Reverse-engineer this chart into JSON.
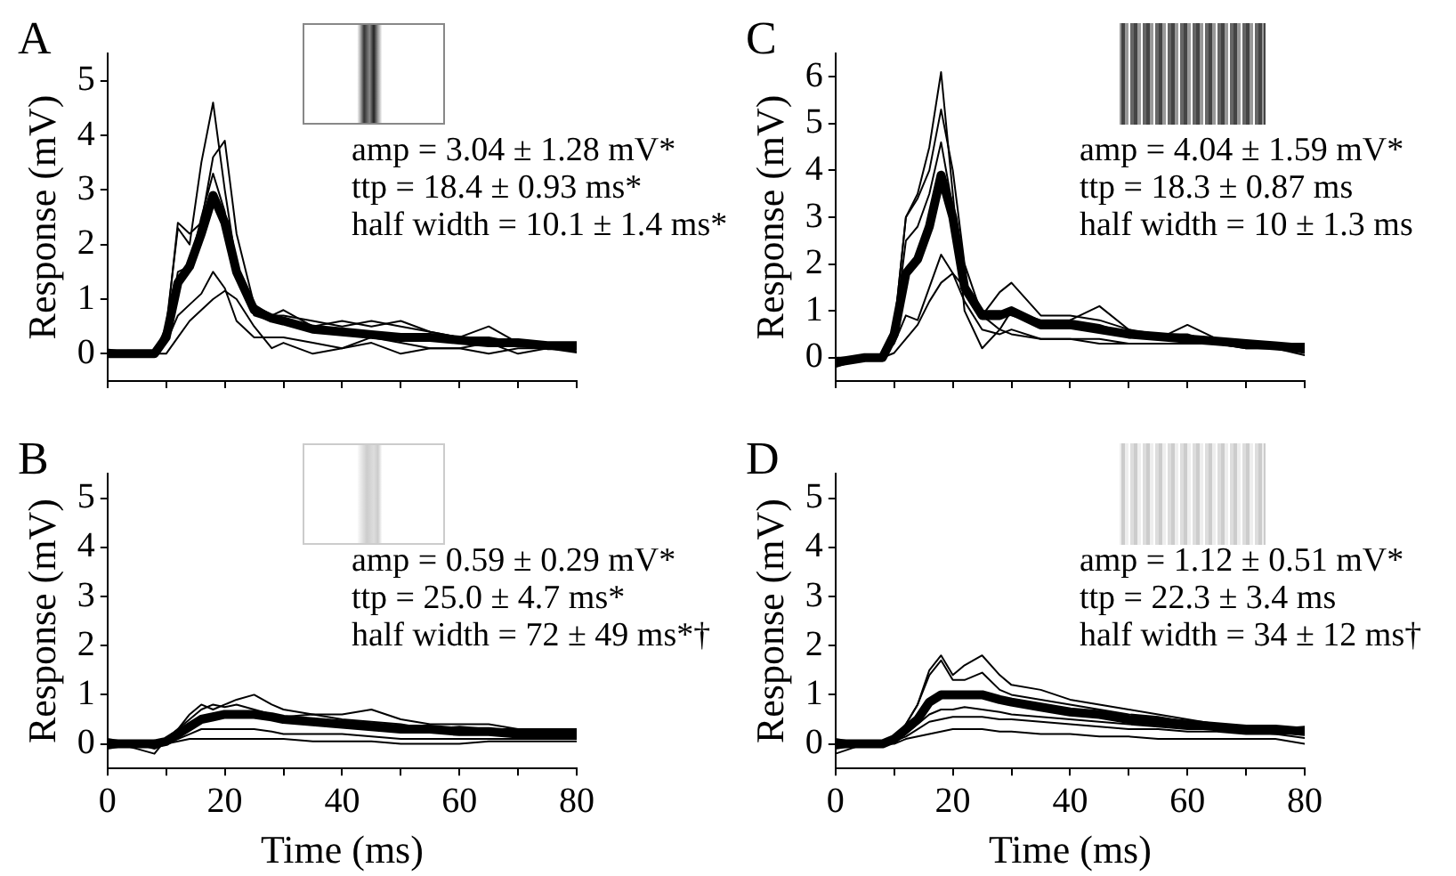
{
  "chart_data": [
    {
      "type": "line",
      "title": "A",
      "ylabel": "Response (mV)",
      "tick_labels": "y",
      "xlim": [
        0,
        80
      ],
      "xticks": [
        0,
        {
          "value": 10,
          "label": null
        },
        20,
        {
          "value": 30,
          "label": null
        },
        40,
        {
          "value": 50,
          "label": null
        },
        60,
        {
          "value": 70,
          "label": null
        },
        80
      ],
      "ylim": [
        -0.5,
        5.5
      ],
      "yticks": [
        0,
        1,
        2,
        3,
        4,
        5
      ],
      "annotations": [
        "amp = 3.04 ± 1.28 mV*",
        "ttp = 18.4 ± 0.93 ms*",
        "half width = 10.1 ± 1.4 ms*"
      ],
      "x": [
        0,
        5,
        8,
        10,
        12,
        14,
        16,
        18,
        20,
        22,
        25,
        28,
        30,
        35,
        40,
        45,
        50,
        55,
        60,
        65,
        70,
        75,
        80
      ],
      "series": [
        {
          "color": "#000000",
          "values": [
            0.05,
            0,
            0,
            0.5,
            2.3,
            2.0,
            3.5,
            4.6,
            3.0,
            1.6,
            0.8,
            0.7,
            0.7,
            0.6,
            0.5,
            0.6,
            0.5,
            0.4,
            0.3,
            0.3,
            0.2,
            0.2,
            0.2
          ]
        },
        {
          "color": "#000000",
          "values": [
            -0.05,
            0,
            0,
            0.4,
            2.4,
            2.2,
            2.4,
            3.6,
            3.9,
            2.2,
            0.9,
            0.7,
            0.8,
            0.5,
            0.6,
            0.5,
            0.6,
            0.4,
            0.3,
            0.5,
            0.2,
            0.2,
            0.1
          ]
        },
        {
          "color": "#000000",
          "values": [
            0.02,
            0,
            0,
            0.3,
            1.5,
            1.6,
            2.5,
            3.3,
            2.6,
            1.4,
            0.7,
            0.6,
            0.55,
            0.5,
            0.4,
            0.3,
            0.3,
            0.3,
            0.2,
            0.2,
            0.2,
            0.1,
            0.12
          ]
        },
        {
          "color": "#000000",
          "values": [
            -0.02,
            0,
            0,
            0.2,
            0.7,
            0.9,
            1.1,
            1.5,
            1.2,
            0.6,
            0.3,
            0.3,
            0.3,
            0.2,
            0.1,
            0.3,
            0.2,
            0.1,
            0.1,
            0,
            0.1,
            0.1,
            0.05
          ]
        },
        {
          "color": "#000000",
          "values": [
            0.08,
            0,
            0,
            0,
            0.3,
            0.6,
            0.8,
            1.0,
            1.15,
            1.0,
            0.5,
            0.1,
            0.2,
            0,
            0.1,
            0.2,
            0,
            0.1,
            0.1,
            0.2,
            0,
            0.1,
            0.02
          ]
        },
        {
          "color": "#000000",
          "values": [
            0,
            0,
            0,
            0.3,
            1.3,
            1.6,
            2.2,
            2.9,
            2.4,
            1.5,
            0.8,
            0.65,
            0.6,
            0.45,
            0.4,
            0.35,
            0.3,
            0.3,
            0.25,
            0.2,
            0.2,
            0.15,
            0.15
          ]
        }
      ]
    },
    {
      "type": "line",
      "title": "C",
      "ylabel": "Response (mV)",
      "tick_labels": "y",
      "xlim": [
        0,
        80
      ],
      "xticks": [
        0,
        {
          "value": 10,
          "label": null
        },
        20,
        {
          "value": 30,
          "label": null
        },
        40,
        {
          "value": 50,
          "label": null
        },
        60,
        {
          "value": 70,
          "label": null
        },
        80
      ],
      "ylim": [
        -0.5,
        6.5
      ],
      "yticks": [
        0,
        1,
        2,
        3,
        4,
        5,
        6
      ],
      "annotations": [
        "amp = 4.04 ± 1.59 mV*",
        "ttp = 18.3 ± 0.87 ms",
        "half width = 10 ± 1.3 ms"
      ],
      "x": [
        0,
        5,
        8,
        10,
        12,
        14,
        16,
        18,
        20,
        22,
        25,
        28,
        30,
        35,
        40,
        45,
        50,
        55,
        60,
        65,
        70,
        75,
        80
      ],
      "series": [
        {
          "color": "#000000",
          "values": [
            -0.15,
            0,
            0,
            0.6,
            3.0,
            3.5,
            4.5,
            6.1,
            3.5,
            1.0,
            0.2,
            0.6,
            1.0,
            0.8,
            0.8,
            0.7,
            0.5,
            0.5,
            0.4,
            0.4,
            0.3,
            0.3,
            0.25
          ]
        },
        {
          "color": "#000000",
          "values": [
            -0.05,
            0,
            0,
            0.6,
            3.0,
            3.4,
            4.0,
            5.3,
            4.0,
            2.0,
            0.9,
            1.4,
            1.6,
            0.9,
            0.9,
            0.8,
            0.6,
            0.5,
            0.5,
            0.3,
            0.3,
            0.3,
            0.3
          ]
        },
        {
          "color": "#000000",
          "values": [
            -0.2,
            0,
            0,
            0.5,
            2.5,
            2.8,
            3.5,
            4.6,
            3.2,
            1.6,
            1.0,
            1.0,
            0.9,
            0.7,
            0.8,
            1.1,
            0.6,
            0.4,
            0.7,
            0.4,
            0.3,
            0.2,
            0.15
          ]
        },
        {
          "color": "#000000",
          "values": [
            0,
            0,
            0,
            0.3,
            0.9,
            0.8,
            1.5,
            2.2,
            1.8,
            1.2,
            0.6,
            0.5,
            0.6,
            0.4,
            0.4,
            0.4,
            0.3,
            0.3,
            0.3,
            0.3,
            0.2,
            0.2,
            0.1
          ]
        },
        {
          "color": "#000000",
          "values": [
            -0.08,
            0,
            0,
            0.1,
            0.4,
            0.7,
            1.2,
            1.6,
            1.8,
            1.5,
            0.9,
            0.6,
            0.5,
            0.4,
            0.4,
            0.3,
            0.3,
            0.3,
            0.3,
            0.3,
            0.2,
            0.2,
            0.05
          ]
        },
        {
          "color": "#000000",
          "values": [
            -0.1,
            0,
            0,
            0.5,
            1.8,
            2.1,
            2.8,
            3.9,
            3.0,
            1.5,
            0.9,
            0.9,
            1.0,
            0.7,
            0.7,
            0.6,
            0.5,
            0.45,
            0.4,
            0.35,
            0.3,
            0.25,
            0.2
          ]
        }
      ]
    },
    {
      "type": "line",
      "title": "B",
      "ylabel": "Response (mV)",
      "xlabel": "Time (ms)",
      "xlim": [
        0,
        80
      ],
      "xticks": [
        0,
        {
          "value": 10,
          "label": null
        },
        20,
        {
          "value": 30,
          "label": null
        },
        40,
        {
          "value": 50,
          "label": null
        },
        60,
        {
          "value": 70,
          "label": null
        },
        80
      ],
      "ylim": [
        -0.5,
        5.5
      ],
      "yticks": [
        0,
        1,
        2,
        3,
        4,
        5
      ],
      "annotations": [
        "amp = 0.59 ± 0.29 mV*",
        "ttp = 25.0 ± 4.7 ms*",
        "half width = 72 ± 49 ms*†"
      ],
      "x": [
        0,
        5,
        8,
        10,
        12,
        14,
        16,
        18,
        20,
        22,
        25,
        28,
        30,
        35,
        40,
        45,
        50,
        55,
        60,
        65,
        70,
        75,
        80
      ],
      "series": [
        {
          "color": "#000000",
          "values": [
            0.05,
            -0.1,
            -0.2,
            0.1,
            0.3,
            0.6,
            0.8,
            0.7,
            0.8,
            0.9,
            1.0,
            0.8,
            0.7,
            0.6,
            0.6,
            0.7,
            0.5,
            0.4,
            0.4,
            0.4,
            0.3,
            0.3,
            0.3
          ]
        },
        {
          "color": "#000000",
          "values": [
            -0.05,
            0,
            0,
            0.1,
            0.3,
            0.5,
            0.7,
            0.8,
            0.75,
            0.8,
            0.7,
            0.6,
            0.55,
            0.6,
            0.5,
            0.45,
            0.4,
            0.3,
            0.35,
            0.3,
            0.3,
            0.2,
            0.25
          ]
        },
        {
          "color": "#000000",
          "values": [
            0.1,
            0,
            -0.1,
            0,
            0.1,
            0.2,
            0.3,
            0.3,
            0.3,
            0.3,
            0.3,
            0.25,
            0.2,
            0.2,
            0.2,
            0.15,
            0.1,
            0.1,
            0.1,
            0.1,
            0.1,
            0.1,
            0.1
          ]
        },
        {
          "color": "#000000",
          "values": [
            -0.1,
            0,
            0,
            0,
            0.05,
            0.1,
            0.1,
            0.1,
            0.1,
            0.1,
            0.1,
            0.1,
            0.1,
            0.05,
            0.05,
            0.05,
            0,
            0,
            0,
            0.05,
            0.05,
            0.05,
            0.05
          ]
        },
        {
          "color": "#000000",
          "values": [
            0,
            0,
            0,
            0.05,
            0.2,
            0.35,
            0.5,
            0.55,
            0.6,
            0.6,
            0.6,
            0.55,
            0.5,
            0.45,
            0.4,
            0.35,
            0.3,
            0.3,
            0.25,
            0.25,
            0.2,
            0.2,
            0.2
          ]
        }
      ]
    },
    {
      "type": "line",
      "title": "D",
      "ylabel": "Response (mV)",
      "xlabel": "Time (ms)",
      "xlim": [
        0,
        80
      ],
      "xticks": [
        0,
        {
          "value": 10,
          "label": null
        },
        20,
        {
          "value": 30,
          "label": null
        },
        40,
        {
          "value": 50,
          "label": null
        },
        60,
        {
          "value": 70,
          "label": null
        },
        80
      ],
      "ylim": [
        -0.5,
        5.5
      ],
      "yticks": [
        0,
        1,
        2,
        3,
        4,
        5
      ],
      "annotations": [
        "amp = 1.12 ± 0.51 mV*",
        "ttp = 22.3 ± 3.4 ms",
        "half width = 34 ± 12 ms†"
      ],
      "x": [
        0,
        5,
        8,
        10,
        12,
        14,
        16,
        18,
        20,
        22,
        25,
        28,
        30,
        35,
        40,
        45,
        50,
        55,
        60,
        65,
        70,
        75,
        80
      ],
      "series": [
        {
          "color": "#000000",
          "values": [
            0.05,
            0,
            0,
            0.1,
            0.4,
            0.8,
            1.5,
            1.8,
            1.4,
            1.6,
            1.8,
            1.4,
            1.2,
            1.1,
            0.9,
            0.8,
            0.7,
            0.6,
            0.5,
            0.4,
            0.35,
            0.3,
            0.35
          ]
        },
        {
          "color": "#000000",
          "values": [
            0.02,
            0,
            0,
            0.1,
            0.4,
            0.8,
            1.4,
            1.7,
            1.3,
            1.3,
            1.45,
            1.1,
            1.0,
            0.9,
            0.8,
            0.7,
            0.6,
            0.55,
            0.45,
            0.4,
            0.35,
            0.3,
            0.3
          ]
        },
        {
          "color": "#000000",
          "values": [
            0.1,
            0,
            0,
            0.05,
            0.2,
            0.4,
            0.6,
            0.7,
            0.7,
            0.75,
            0.7,
            0.65,
            0.6,
            0.55,
            0.5,
            0.45,
            0.4,
            0.35,
            0.3,
            0.3,
            0.25,
            0.2,
            0.22
          ]
        },
        {
          "color": "#000000",
          "values": [
            -0.1,
            0,
            0,
            0.05,
            0.15,
            0.3,
            0.45,
            0.5,
            0.55,
            0.55,
            0.55,
            0.5,
            0.5,
            0.45,
            0.4,
            0.35,
            0.3,
            0.3,
            0.25,
            0.25,
            0.2,
            0.2,
            0.12
          ]
        },
        {
          "color": "#000000",
          "values": [
            -0.2,
            0,
            0,
            0,
            0.1,
            0.15,
            0.2,
            0.25,
            0.3,
            0.3,
            0.3,
            0.25,
            0.25,
            0.2,
            0.2,
            0.15,
            0.15,
            0.1,
            0.1,
            0.1,
            0.1,
            0.1,
            0
          ]
        },
        {
          "color": "#000000",
          "values": [
            0,
            0,
            0,
            0.1,
            0.3,
            0.5,
            0.85,
            1.0,
            1.0,
            1.0,
            1.0,
            0.9,
            0.85,
            0.75,
            0.65,
            0.6,
            0.5,
            0.45,
            0.4,
            0.35,
            0.3,
            0.3,
            0.25
          ]
        }
      ]
    }
  ]
}
